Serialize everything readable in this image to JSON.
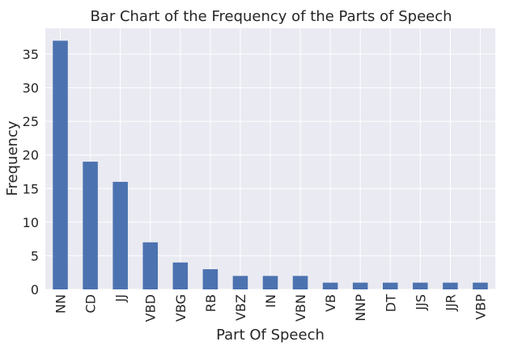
{
  "chart_data": {
    "type": "bar",
    "title": "Bar Chart of the Frequency of the Parts of Speech",
    "xlabel": "Part Of Speech",
    "ylabel": "Frequency",
    "categories": [
      "NN",
      "CD",
      "JJ",
      "VBD",
      "VBG",
      "RB",
      "VBZ",
      "IN",
      "VBN",
      "VB",
      "NNP",
      "DT",
      "JJS",
      "JJR",
      "VBP"
    ],
    "values": [
      37,
      19,
      16,
      7,
      4,
      3,
      2,
      2,
      2,
      1,
      1,
      1,
      1,
      1,
      1
    ],
    "y_ticks": [
      0,
      5,
      10,
      15,
      20,
      25,
      30,
      35
    ],
    "ylim": [
      0,
      38.85
    ],
    "grid": true,
    "colors": {
      "bar": "#4c72b0",
      "plot_background": "#eaeaf2",
      "grid": "#ffffff",
      "text": "#262626"
    }
  }
}
